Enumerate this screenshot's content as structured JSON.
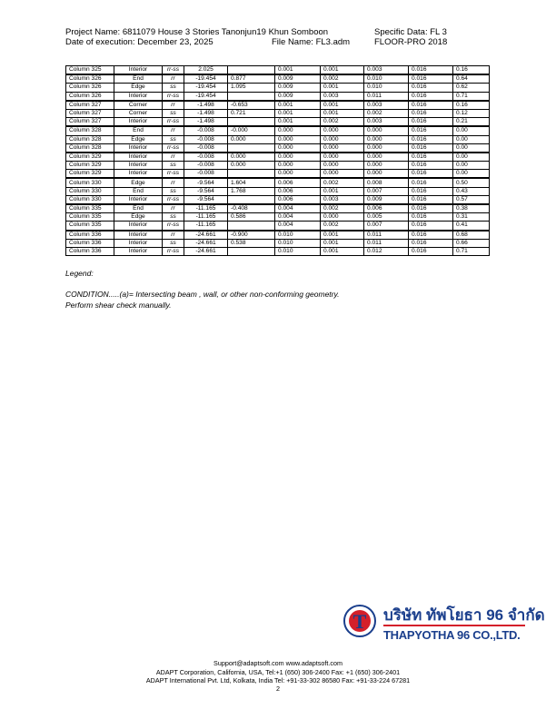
{
  "header": {
    "project_name": "Project Name: 6811079 House 3 Stories Tanonjun19 Khun Somboon",
    "specific_data": "Specific Data: FL 3",
    "date": "Date of execution: December 23, 2025",
    "file_name": "File Name: FL3.adm",
    "software": "FLOOR-PRO 2018"
  },
  "table": {
    "rows": [
      [
        "Column 325",
        "Interior",
        "rr-ss",
        "2.025",
        "",
        "0.001",
        "0.001",
        "0.003",
        "0.016",
        "0.16"
      ],
      [
        "Column 326",
        "End",
        "rr",
        "-19.454",
        "0.877",
        "0.009",
        "0.002",
        "0.010",
        "0.016",
        "0.64"
      ],
      [
        "Column 326",
        "Edge",
        "ss",
        "-19.454",
        "1.095",
        "0.009",
        "0.001",
        "0.010",
        "0.016",
        "0.62"
      ],
      [
        "Column 326",
        "Interior",
        "rr-ss",
        "-19.454",
        "",
        "0.009",
        "0.003",
        "0.011",
        "0.016",
        "0.71"
      ],
      [
        "Column 327",
        "Corner",
        "rr",
        "-1.498",
        "-0.653",
        "0.001",
        "0.001",
        "0.003",
        "0.016",
        "0.16"
      ],
      [
        "Column 327",
        "Corner",
        "ss",
        "-1.498",
        "0.721",
        "0.001",
        "0.001",
        "0.002",
        "0.016",
        "0.12"
      ],
      [
        "Column 327",
        "Interior",
        "rr-ss",
        "-1.498",
        "",
        "0.001",
        "0.002",
        "0.003",
        "0.016",
        "0.21"
      ],
      [
        "Column 328",
        "End",
        "rr",
        "-0.008",
        "-0.000",
        "0.000",
        "0.000",
        "0.000",
        "0.016",
        "0.00"
      ],
      [
        "Column 328",
        "Edge",
        "ss",
        "-0.008",
        "0.000",
        "0.000",
        "0.000",
        "0.000",
        "0.016",
        "0.00"
      ],
      [
        "Column 328",
        "Interior",
        "rr-ss",
        "-0.008",
        "",
        "0.000",
        "0.000",
        "0.000",
        "0.016",
        "0.00"
      ],
      [
        "Column 329",
        "Interior",
        "rr",
        "-0.008",
        "0.000",
        "0.000",
        "0.000",
        "0.000",
        "0.016",
        "0.00"
      ],
      [
        "Column 329",
        "Interior",
        "ss",
        "-0.008",
        "0.000",
        "0.000",
        "0.000",
        "0.000",
        "0.016",
        "0.00"
      ],
      [
        "Column 329",
        "Interior",
        "rr-ss",
        "-0.008",
        "",
        "0.000",
        "0.000",
        "0.000",
        "0.016",
        "0.00"
      ],
      [
        "Column 330",
        "Edge",
        "rr",
        "-9.564",
        "1.604",
        "0.006",
        "0.002",
        "0.008",
        "0.016",
        "0.50"
      ],
      [
        "Column 330",
        "End",
        "ss",
        "-9.564",
        "1.768",
        "0.006",
        "0.001",
        "0.007",
        "0.016",
        "0.43"
      ],
      [
        "Column 330",
        "Interior",
        "rr-ss",
        "-9.564",
        "",
        "0.006",
        "0.003",
        "0.009",
        "0.016",
        "0.57"
      ],
      [
        "Column 335",
        "End",
        "rr",
        "-11.165",
        "-0.408",
        "0.004",
        "0.002",
        "0.006",
        "0.016",
        "0.38"
      ],
      [
        "Column 335",
        "Edge",
        "ss",
        "-11.165",
        "0.586",
        "0.004",
        "0.000",
        "0.005",
        "0.016",
        "0.31"
      ],
      [
        "Column 335",
        "Interior",
        "rr-ss",
        "-11.165",
        "",
        "0.004",
        "0.002",
        "0.007",
        "0.016",
        "0.41"
      ],
      [
        "Column 336",
        "Interior",
        "rr",
        "-24.661",
        "-0.900",
        "0.010",
        "0.001",
        "0.011",
        "0.016",
        "0.68"
      ],
      [
        "Column 336",
        "Interior",
        "ss",
        "-24.661",
        "0.538",
        "0.010",
        "0.001",
        "0.011",
        "0.016",
        "0.66"
      ],
      [
        "Column 336",
        "Interior",
        "rr-ss",
        "-24.661",
        "",
        "0.010",
        "0.001",
        "0.012",
        "0.016",
        "0.71"
      ]
    ]
  },
  "legend": {
    "title": "Legend:",
    "line1": "CONDITION.....(a)= Intersecting beam , wall, or other non-conforming geometry.",
    "line2": "Perform shear check manually."
  },
  "logo": {
    "letter": "T",
    "thai_name": "บริษัท ทัพโยธา 96 จำกัด",
    "english_name": "THAPYOTHA 96 CO.,LTD.",
    "colors": {
      "blue": "#1a3e8c",
      "red": "#d4202a"
    }
  },
  "footer": {
    "contact": "Support@adaptsoft.com      www.adaptsoft.com",
    "line1": "ADAPT Corporation, California, USA,    Tel:+1 (650) 306-2400     Fax: +1 (650) 306-2401",
    "line2": "ADAPT International Pvt. Ltd, Kolkata, India Tel: +91-33-302 86580     Fax: +91-33-224 67281",
    "page_number": "2"
  }
}
